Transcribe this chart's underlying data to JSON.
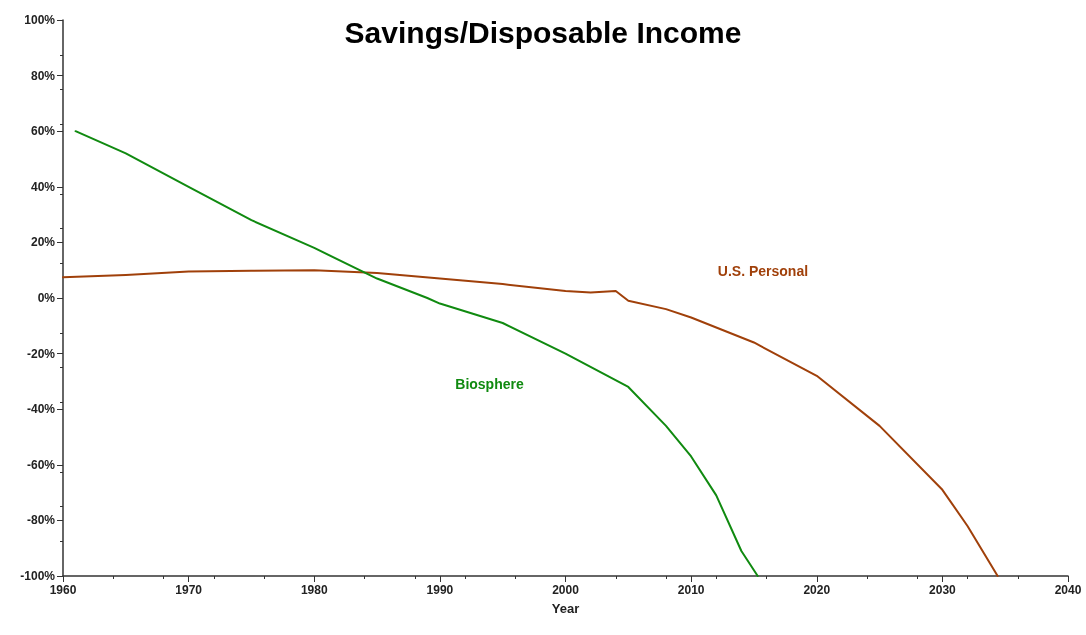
{
  "chart_data": {
    "type": "line",
    "title": "Savings/Disposable Income",
    "xlabel": "Year",
    "xlim": [
      1960,
      2040
    ],
    "xticks": [
      1960,
      1970,
      1980,
      1990,
      2000,
      2010,
      2020,
      2030,
      2040
    ],
    "ylim": [
      -100,
      100
    ],
    "yticks": [
      {
        "value": -100,
        "label": "-100%"
      },
      {
        "value": -80,
        "label": "-80%"
      },
      {
        "value": -60,
        "label": "-60%"
      },
      {
        "value": -40,
        "label": "-40%"
      },
      {
        "value": -20,
        "label": "-20%"
      },
      {
        "value": 0,
        "label": "0%"
      },
      {
        "value": 20,
        "label": "20%"
      },
      {
        "value": 40,
        "label": "40%"
      },
      {
        "value": 60,
        "label": "60%"
      },
      {
        "value": 80,
        "label": "80%"
      },
      {
        "value": 100,
        "label": "100%"
      }
    ],
    "grid": false,
    "legend": false,
    "marker": "none",
    "line_style": "solid",
    "series": [
      {
        "name": "U.S. Personal",
        "color": "#a0400a",
        "x": [
          1960,
          1965,
          1970,
          1975,
          1980,
          1985,
          1990,
          1995,
          2000,
          2002,
          2004,
          2005,
          2008,
          2010,
          2015,
          2020,
          2025,
          2030,
          2032,
          2034.4
        ],
        "values": [
          7.5,
          8.3,
          9.5,
          9.8,
          10,
          9,
          7,
          5,
          2.5,
          2,
          2.5,
          -1,
          -4,
          -7,
          -16,
          -28,
          -46,
          -69,
          -82,
          -100
        ]
      },
      {
        "name": "Biosphere",
        "color": "#108a10",
        "x": [
          1961,
          1965,
          1970,
          1975,
          1980,
          1985,
          1989,
          1990,
          1995,
          2000,
          2005,
          2008,
          2010,
          2012,
          2014,
          2015.3
        ],
        "values": [
          60,
          52,
          40,
          28,
          18,
          7,
          0,
          -2,
          -9,
          -20,
          -32,
          -46,
          -57,
          -71,
          -91,
          -100
        ]
      }
    ]
  }
}
